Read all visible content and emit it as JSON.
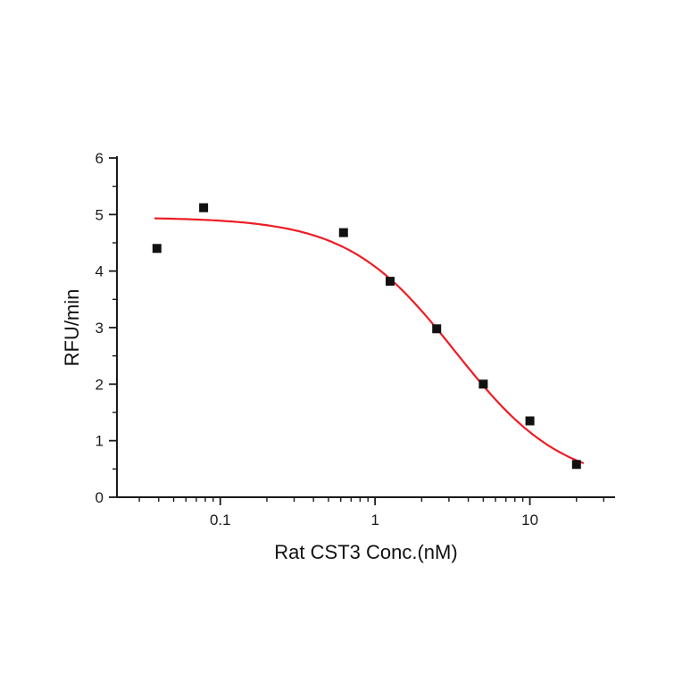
{
  "page": {
    "background": "#ffffff"
  },
  "chart_data": {
    "type": "scatter",
    "title": "",
    "xlabel": "Rat CST3 Conc.(nM)",
    "ylabel": "RFU/min",
    "x_scale": "log",
    "x_range": [
      0.0215,
      35.5
    ],
    "y_range": [
      0,
      6
    ],
    "grid": false,
    "legend": false,
    "axis_color": "#1a1a1a",
    "x_major_ticks": [
      {
        "value": 0.1,
        "label": "0.1"
      },
      {
        "value": 1,
        "label": "1"
      },
      {
        "value": 10,
        "label": "10"
      }
    ],
    "y_major_ticks": [
      {
        "value": 0,
        "label": "0"
      },
      {
        "value": 1,
        "label": "1"
      },
      {
        "value": 2,
        "label": "2"
      },
      {
        "value": 3,
        "label": "3"
      },
      {
        "value": 4,
        "label": "4"
      },
      {
        "value": 5,
        "label": "5"
      },
      {
        "value": 6,
        "label": "6"
      }
    ],
    "y_minor_step": 0.5,
    "points": {
      "x": [
        0.039,
        0.078,
        0.625,
        1.25,
        2.5,
        5,
        10,
        20
      ],
      "y": [
        4.4,
        5.12,
        4.68,
        3.82,
        2.98,
        2.0,
        1.35,
        0.58
      ],
      "marker": "square",
      "color": "#111111",
      "size": 10
    },
    "fit_curve": {
      "model": "4PL-inhibition",
      "top": 4.95,
      "bottom": 0.2,
      "ic50": 3.3,
      "hill": 1.25,
      "x_start": 0.038,
      "x_end": 22,
      "color": "#ed1c24",
      "width": 2.2
    }
  }
}
